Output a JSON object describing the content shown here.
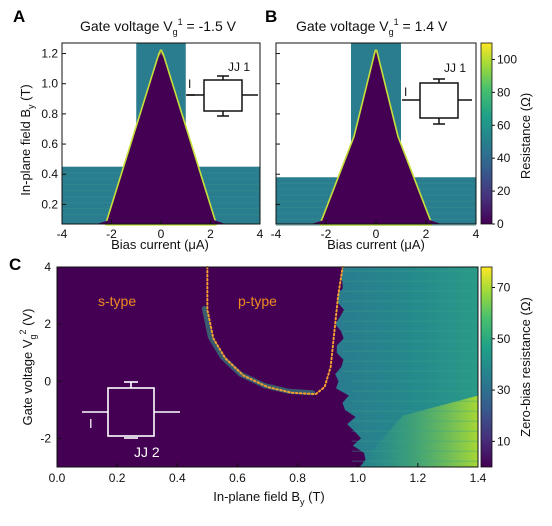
{
  "chart_data": [
    {
      "panel": "A",
      "type": "heatmap",
      "title_main": "Gate voltage V",
      "title_sub": "g",
      "title_sup": "1",
      "title_value": " = -1.5 V",
      "xlabel": "Bias current (μA)",
      "ylabel_main": "In-plane field B",
      "ylabel_sub": "y",
      "ylabel_unit": " (T)",
      "xlim": [
        -4,
        4
      ],
      "ylim": [
        0.07,
        1.27
      ],
      "xticks": [
        "-4",
        "-2",
        "0",
        "2",
        "4"
      ],
      "yticks": [
        "0.2",
        "0.4",
        "0.6",
        "0.8",
        "1.0",
        "1.2"
      ],
      "high_field_window_current": [
        -1.0,
        1.0
      ],
      "low_field_max_By": 0.45,
      "junction_label": "JJ 1",
      "current_label": "I",
      "critical_current_edge": [
        [
          0.08,
          1.55
        ],
        [
          0.2,
          1.2
        ],
        [
          0.3,
          0.85
        ],
        [
          0.4,
          0.6
        ],
        [
          0.5,
          0.42
        ],
        [
          0.6,
          0.3
        ],
        [
          0.8,
          0.16
        ],
        [
          1.0,
          0.09
        ],
        [
          1.2,
          0.05
        ]
      ]
    },
    {
      "panel": "B",
      "type": "heatmap",
      "title_main": "Gate voltage V",
      "title_sub": "g",
      "title_sup": "1",
      "title_value": " = 1.4 V",
      "xlabel": "Bias current (μA)",
      "xlim": [
        -4,
        4
      ],
      "ylim": [
        0.07,
        1.27
      ],
      "xticks": [
        "-4",
        "-2",
        "0",
        "2",
        "4"
      ],
      "high_field_window_current": [
        -1.0,
        1.0
      ],
      "low_field_max_By": 0.38,
      "junction_label": "JJ 1",
      "current_label": "I",
      "critical_current_edge": [
        [
          0.08,
          1.7
        ],
        [
          0.2,
          1.05
        ],
        [
          0.3,
          0.6
        ],
        [
          0.4,
          0.35
        ],
        [
          0.5,
          0.2
        ],
        [
          0.6,
          0.12
        ],
        [
          0.8,
          0.06
        ],
        [
          1.0,
          0.03
        ]
      ]
    },
    {
      "panel": "C",
      "type": "heatmap",
      "xlabel_main": "In-plane field B",
      "xlabel_sub": "y",
      "xlabel_unit": " (T)",
      "ylabel_main": "Gate voltage V",
      "ylabel_sub": "g",
      "ylabel_sup": "2",
      "ylabel_unit": " (V)",
      "xlim": [
        0.0,
        1.4
      ],
      "ylim": [
        -3,
        4
      ],
      "xticks": [
        "0.0",
        "0.2",
        "0.4",
        "0.6",
        "0.8",
        "1.0",
        "1.2",
        "1.4"
      ],
      "yticks": [
        "-2",
        "0",
        "2",
        "4"
      ],
      "region_labels": [
        "s-type",
        "p-type"
      ],
      "junction_label": "JJ 2",
      "current_label": "I",
      "boundary_curve": [
        [
          0.5,
          4.0
        ],
        [
          0.5,
          2.5
        ],
        [
          0.52,
          1.5
        ],
        [
          0.56,
          0.8
        ],
        [
          0.62,
          0.2
        ],
        [
          0.7,
          -0.2
        ],
        [
          0.78,
          -0.4
        ],
        [
          0.86,
          -0.45
        ],
        [
          0.89,
          -0.2
        ],
        [
          0.91,
          0.5
        ],
        [
          0.92,
          1.5
        ],
        [
          0.935,
          3.0
        ],
        [
          0.95,
          4.0
        ]
      ]
    }
  ],
  "colorbars": [
    {
      "label": "Resistance (Ω)",
      "ticks": [
        "0",
        "20",
        "40",
        "60",
        "80",
        "100"
      ],
      "range": [
        0,
        110
      ]
    },
    {
      "label": "Zero-bias resistance (Ω)",
      "ticks": [
        "10",
        "30",
        "50",
        "70"
      ],
      "range": [
        0,
        78
      ]
    }
  ],
  "colors": {
    "low": "#440154",
    "mid": "#2a8f8a",
    "high": "#fde725",
    "boundary": "#f5a030",
    "region_label": "#f08a20"
  }
}
